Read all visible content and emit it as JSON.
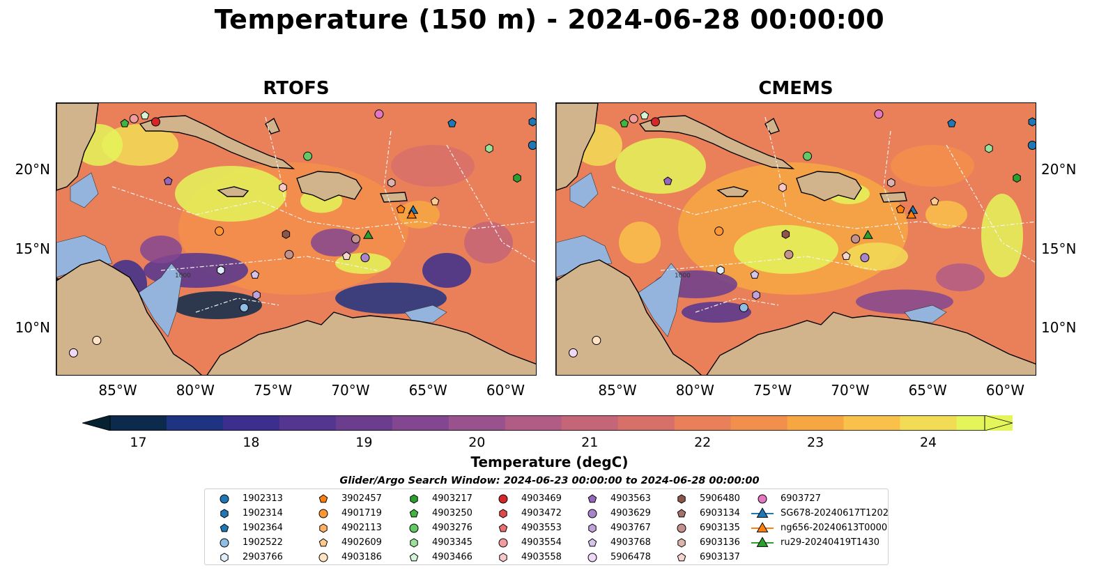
{
  "figure": {
    "title": "Temperature (150 m) - 2024-06-28 00:00:00",
    "panels": [
      {
        "id": "rtofs",
        "title": "RTOFS"
      },
      {
        "id": "cmems",
        "title": "CMEMS"
      }
    ],
    "x_ticks": [
      "85°W",
      "80°W",
      "75°W",
      "70°W",
      "65°W",
      "60°W"
    ],
    "y_ticks": [
      "20°N",
      "15°N",
      "10°N"
    ],
    "map_extent": {
      "lon_min": -89,
      "lon_max": -58,
      "lat_min": 7,
      "lat_max": 24.5
    },
    "bathymetry_label": "1000"
  },
  "colorbar": {
    "label": "Temperature (degC)",
    "ticks": [
      "17",
      "18",
      "19",
      "20",
      "21",
      "22",
      "23",
      "24"
    ],
    "range": [
      16.75,
      24.5
    ],
    "extend": "both",
    "colors": [
      "#06212f",
      "#0c2a4c",
      "#1e3382",
      "#3b2e8d",
      "#543590",
      "#6b3d8e",
      "#834791",
      "#9a528e",
      "#b05c85",
      "#c56578",
      "#d8706a",
      "#e9805a",
      "#f38f4c",
      "#f7a742",
      "#f9c14a",
      "#f2dc56",
      "#e4f55a"
    ]
  },
  "search_window": "Glider/Argo Search Window: 2024-06-23 00:00:00 to 2024-06-28 00:00:00",
  "legend": {
    "columns": [
      [
        {
          "label": "1902313",
          "marker": "circle",
          "color": "#1f77b4"
        },
        {
          "label": "1902314",
          "marker": "hexagon",
          "color": "#1f77b4"
        },
        {
          "label": "1902364",
          "marker": "pentagon",
          "color": "#1f77b4"
        },
        {
          "label": "1902522",
          "marker": "circle",
          "color": "#8fbde3"
        },
        {
          "label": "2903766",
          "marker": "hexagon",
          "color": "#deeefb"
        }
      ],
      [
        {
          "label": "3902457",
          "marker": "pentagon",
          "color": "#ff7f0e"
        },
        {
          "label": "4901719",
          "marker": "circle",
          "color": "#ff9733"
        },
        {
          "label": "4902113",
          "marker": "hexagon",
          "color": "#ffb266"
        },
        {
          "label": "4902609",
          "marker": "pentagon",
          "color": "#ffca8f"
        },
        {
          "label": "4903186",
          "marker": "circle",
          "color": "#ffe3c4"
        }
      ],
      [
        {
          "label": "4903217",
          "marker": "hexagon",
          "color": "#2ca02c"
        },
        {
          "label": "4903250",
          "marker": "pentagon",
          "color": "#3fb63f"
        },
        {
          "label": "4903276",
          "marker": "circle",
          "color": "#63c963"
        },
        {
          "label": "4903345",
          "marker": "hexagon",
          "color": "#9be09b"
        },
        {
          "label": "4903466",
          "marker": "pentagon",
          "color": "#d6f5d6"
        }
      ],
      [
        {
          "label": "4903469",
          "marker": "circle",
          "color": "#d62728"
        },
        {
          "label": "4903472",
          "marker": "hexagon",
          "color": "#e04a4b"
        },
        {
          "label": "4903553",
          "marker": "pentagon",
          "color": "#e97071"
        },
        {
          "label": "4903554",
          "marker": "circle",
          "color": "#f29d9d"
        },
        {
          "label": "4903558",
          "marker": "hexagon",
          "color": "#f9c9c9"
        }
      ],
      [
        {
          "label": "4903563",
          "marker": "pentagon",
          "color": "#9467bd"
        },
        {
          "label": "4903629",
          "marker": "circle",
          "color": "#a885cb"
        },
        {
          "label": "4903767",
          "marker": "hexagon",
          "color": "#bfa3da"
        },
        {
          "label": "4903768",
          "marker": "pentagon",
          "color": "#d6c4ea"
        },
        {
          "label": "5906478",
          "marker": "circle",
          "color": "#f0d9f5"
        }
      ],
      [
        {
          "label": "5906480",
          "marker": "hexagon",
          "color": "#8c564b"
        },
        {
          "label": "6903134",
          "marker": "pentagon",
          "color": "#a5716a"
        },
        {
          "label": "6903135",
          "marker": "circle",
          "color": "#c4928c"
        },
        {
          "label": "6903136",
          "marker": "hexagon",
          "color": "#ddb3ae"
        },
        {
          "label": "6903137",
          "marker": "pentagon",
          "color": "#f6d5cf"
        }
      ],
      [
        {
          "label": "6903727",
          "marker": "circle",
          "color": "#e377c2"
        },
        {
          "label": "SG678-20240617T1202",
          "marker": "triangle-line",
          "color": "#1f77b4"
        },
        {
          "label": "ng656-20240613T0000",
          "marker": "triangle-line",
          "color": "#ff7f0e"
        },
        {
          "label": "ru29-20240419T1430",
          "marker": "triangle-line",
          "color": "#2ca02c"
        }
      ]
    ]
  }
}
